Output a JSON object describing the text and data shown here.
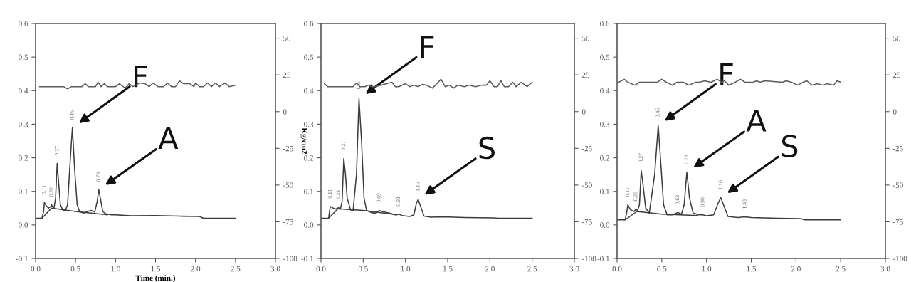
{
  "chart_data": [
    {
      "type": "line",
      "xlabel": "Time (min.)",
      "y2label": "Kg/cm2",
      "xlim": [
        0,
        3
      ],
      "xticks": [
        {
          "value": 0,
          "label": "0.0"
        },
        {
          "value": 0.5,
          "label": "0.5"
        },
        {
          "value": 1,
          "label": "1.0"
        },
        {
          "value": 1.5,
          "label": "1.5"
        },
        {
          "value": 2,
          "label": "2.0"
        },
        {
          "value": 2.5,
          "label": "2.5"
        },
        {
          "value": 3,
          "label": "3.0"
        }
      ],
      "ylim": [
        -0.1,
        0.6
      ],
      "yticks": [
        {
          "value": -0.1,
          "label": "-0.1"
        },
        {
          "value": 0,
          "label": "0.0"
        },
        {
          "value": 0.1,
          "label": "0.1"
        },
        {
          "value": 0.2,
          "label": "0.2"
        },
        {
          "value": 0.3,
          "label": "0.3"
        },
        {
          "value": 0.4,
          "label": "0.4"
        },
        {
          "value": 0.5,
          "label": "0.5"
        },
        {
          "value": 0.6,
          "label": "0.6"
        }
      ],
      "y2lim": [
        -100,
        60
      ],
      "y2ticks": [
        -100,
        -75,
        -50,
        -25,
        0,
        25,
        50
      ],
      "series": [
        {
          "color": "#3c3c3c",
          "x": [
            0,
            0.08,
            0.1,
            0.11,
            0.13,
            0.16,
            0.19,
            0.2,
            0.21,
            0.23,
            0.25,
            0.27,
            0.29,
            0.31,
            0.34,
            0.37,
            0.4,
            0.43,
            0.46,
            0.49,
            0.52,
            0.55,
            0.6,
            0.65,
            0.7,
            0.74,
            0.77,
            0.79,
            0.81,
            0.84,
            0.88,
            0.95,
            1.0,
            1.2,
            1.5,
            1.8,
            2.05,
            2.1,
            2.5
          ],
          "values": [
            0.02,
            0.02,
            0.04,
            0.067,
            0.058,
            0.05,
            0.055,
            0.06,
            0.055,
            0.05,
            0.08,
            0.183,
            0.12,
            0.06,
            0.045,
            0.042,
            0.06,
            0.18,
            0.289,
            0.16,
            0.06,
            0.04,
            0.035,
            0.04,
            0.043,
            0.038,
            0.07,
            0.105,
            0.08,
            0.04,
            0.033,
            0.03,
            0.03,
            0.027,
            0.028,
            0.026,
            0.025,
            0.02,
            0.02
          ]
        },
        {
          "color": "#3c3c3c",
          "x": [
            0.08,
            0.2,
            0.5,
            0.9
          ],
          "values": [
            0.02,
            0.05,
            0.04,
            0.03
          ]
        },
        {
          "color": "#5a5a5a",
          "axis": "y2",
          "x": [
            0.05,
            0.35,
            0.4,
            0.45,
            0.58,
            0.62,
            0.66,
            0.75,
            0.78,
            0.82,
            0.86,
            0.9,
            1.0,
            1.05,
            1.12,
            1.17,
            1.22,
            1.3,
            1.37,
            1.42,
            1.47,
            1.53,
            1.6,
            1.65,
            1.7,
            1.75,
            1.8,
            1.85,
            1.93,
            1.98,
            2.0,
            2.05,
            2.1,
            2.15,
            2.2,
            2.25,
            2.3,
            2.37,
            2.42,
            2.5
          ],
          "values": [
            17,
            17,
            15.5,
            17,
            17,
            19,
            17,
            17,
            20,
            17,
            19,
            17,
            17,
            19,
            16,
            19,
            17,
            19.5,
            19,
            17,
            19.5,
            17,
            17,
            19.5,
            17,
            17,
            21,
            19,
            19,
            17,
            19.5,
            17,
            17,
            19.5,
            17,
            19.5,
            17,
            19.5,
            17,
            18
          ]
        }
      ],
      "annotations": [
        {
          "text": "0.11",
          "x": 0.11,
          "y": 0.067
        },
        {
          "text": "0.20",
          "x": 0.2,
          "y": 0.06
        },
        {
          "text": "0.27",
          "x": 0.27,
          "y": 0.183
        },
        {
          "text": "0.46",
          "x": 0.46,
          "y": 0.289
        },
        {
          "text": "0.79",
          "x": 0.79,
          "y": 0.105
        },
        {
          "text": "F",
          "x": 0.46,
          "y": 0.289
        },
        {
          "text": "A",
          "x": 0.79,
          "y": 0.105
        }
      ]
    },
    {
      "type": "line",
      "xlim": [
        0,
        3
      ],
      "xticks": [
        {
          "value": 0,
          "label": "0.0"
        },
        {
          "value": 0.5,
          "label": "0.5"
        },
        {
          "value": 1,
          "label": "1.0"
        },
        {
          "value": 1.5,
          "label": "1.5"
        },
        {
          "value": 2,
          "label": "2.0"
        },
        {
          "value": 2.5,
          "label": "2.5"
        },
        {
          "value": 3,
          "label": "3.0"
        }
      ],
      "ylim": [
        -0.1,
        0.6
      ],
      "yticks": [
        {
          "value": -0.1,
          "label": "-0.1"
        },
        {
          "value": 0,
          "label": "0.0"
        },
        {
          "value": 0.1,
          "label": "0.1"
        },
        {
          "value": 0.2,
          "label": "0.2"
        },
        {
          "value": 0.3,
          "label": "0.3"
        },
        {
          "value": 0.4,
          "label": "0.4"
        },
        {
          "value": 0.5,
          "label": "0.5"
        },
        {
          "value": 0.6,
          "label": "0.6"
        }
      ],
      "y2lim": [
        -100,
        60
      ],
      "y2ticks": [
        -100,
        -75,
        -50,
        -25,
        0,
        25,
        50
      ],
      "series": [
        {
          "color": "#3c3c3c",
          "x": [
            0,
            0.09,
            0.11,
            0.13,
            0.17,
            0.2,
            0.21,
            0.23,
            0.25,
            0.27,
            0.29,
            0.31,
            0.35,
            0.38,
            0.42,
            0.45,
            0.48,
            0.51,
            0.54,
            0.6,
            0.65,
            0.69,
            0.72,
            0.8,
            0.88,
            0.92,
            0.96,
            1.05,
            1.1,
            1.13,
            1.15,
            1.18,
            1.22,
            1.3,
            1.45,
            1.7,
            2.05,
            2.1,
            2.5
          ],
          "values": [
            0.02,
            0.02,
            0.055,
            0.052,
            0.047,
            0.05,
            0.053,
            0.048,
            0.07,
            0.198,
            0.15,
            0.08,
            0.045,
            0.043,
            0.15,
            0.376,
            0.25,
            0.08,
            0.043,
            0.036,
            0.035,
            0.043,
            0.04,
            0.036,
            0.03,
            0.032,
            0.028,
            0.025,
            0.03,
            0.065,
            0.076,
            0.055,
            0.026,
            0.023,
            0.024,
            0.022,
            0.021,
            0.02,
            0.02
          ]
        },
        {
          "color": "#3c3c3c",
          "x": [
            0.09,
            0.2,
            0.5,
            0.9
          ],
          "values": [
            0.02,
            0.048,
            0.043,
            0.03
          ]
        },
        {
          "color": "#5a5a5a",
          "axis": "y2",
          "x": [
            0.04,
            0.08,
            0.38,
            0.42,
            0.46,
            0.52,
            0.56,
            0.6,
            0.64,
            0.84,
            0.88,
            0.92,
            1.0,
            1.05,
            1.1,
            1.15,
            1.2,
            1.25,
            1.32,
            1.42,
            1.47,
            1.52,
            1.57,
            1.62,
            1.7,
            1.75,
            1.83,
            1.9,
            1.96,
            2.0,
            2.05,
            2.09,
            2.13,
            2.17,
            2.22,
            2.27,
            2.31,
            2.37,
            2.44,
            2.5
          ],
          "values": [
            19,
            17,
            17,
            19.5,
            17,
            17,
            18,
            17,
            17,
            20,
            17,
            17,
            19,
            17,
            18,
            17,
            18.5,
            18,
            16,
            22,
            17,
            18,
            16,
            18,
            17,
            18,
            17,
            18,
            18,
            21,
            17,
            17,
            21,
            17,
            17,
            20,
            17,
            20,
            17,
            20
          ]
        }
      ],
      "annotations": [
        {
          "text": "0.11",
          "x": 0.11,
          "y": 0.055
        },
        {
          "text": "0.21",
          "x": 0.21,
          "y": 0.053
        },
        {
          "text": "0.27",
          "x": 0.27,
          "y": 0.198
        },
        {
          "text": "0.45",
          "x": 0.45,
          "y": 0.376
        },
        {
          "text": "0.69",
          "x": 0.69,
          "y": 0.043
        },
        {
          "text": "0.92",
          "x": 0.92,
          "y": 0.032
        },
        {
          "text": "1.15",
          "x": 1.15,
          "y": 0.076
        },
        {
          "text": "F",
          "x": 0.45,
          "y": 0.376
        },
        {
          "text": "S",
          "x": 1.15,
          "y": 0.076
        }
      ]
    },
    {
      "type": "line",
      "xlim": [
        0,
        3
      ],
      "xticks": [
        {
          "value": 0,
          "label": "0.0"
        },
        {
          "value": 0.5,
          "label": "0.5"
        },
        {
          "value": 1,
          "label": "1.0"
        },
        {
          "value": 1.5,
          "label": "1.5"
        },
        {
          "value": 2,
          "label": "2.0"
        },
        {
          "value": 2.5,
          "label": "2.5"
        },
        {
          "value": 3,
          "label": "3.0"
        }
      ],
      "ylim": [
        -0.1,
        0.6
      ],
      "yticks": [
        {
          "value": -0.1,
          "label": "-0.1"
        },
        {
          "value": 0,
          "label": "0.0"
        },
        {
          "value": 0.1,
          "label": "0.1"
        },
        {
          "value": 0.2,
          "label": "0.2"
        },
        {
          "value": 0.3,
          "label": "0.3"
        },
        {
          "value": 0.4,
          "label": "0.4"
        },
        {
          "value": 0.5,
          "label": "0.5"
        },
        {
          "value": 0.6,
          "label": "0.6"
        }
      ],
      "y2lim": [
        -100,
        60
      ],
      "y2ticks": [
        -100,
        -75,
        -50,
        -25,
        0,
        25,
        50
      ],
      "series": [
        {
          "color": "#3c3c3c",
          "x": [
            0,
            0.09,
            0.11,
            0.12,
            0.15,
            0.19,
            0.21,
            0.23,
            0.25,
            0.27,
            0.29,
            0.32,
            0.36,
            0.42,
            0.46,
            0.49,
            0.52,
            0.56,
            0.62,
            0.68,
            0.72,
            0.75,
            0.78,
            0.81,
            0.85,
            0.92,
            0.96,
            1.0,
            1.08,
            1.13,
            1.16,
            1.19,
            1.24,
            1.35,
            1.43,
            1.5,
            1.8,
            2.05,
            2.1,
            2.5
          ],
          "values": [
            0.015,
            0.015,
            0.04,
            0.06,
            0.045,
            0.04,
            0.047,
            0.043,
            0.06,
            0.162,
            0.12,
            0.05,
            0.035,
            0.15,
            0.296,
            0.18,
            0.06,
            0.03,
            0.03,
            0.037,
            0.032,
            0.06,
            0.157,
            0.08,
            0.035,
            0.03,
            0.03,
            0.027,
            0.03,
            0.065,
            0.081,
            0.06,
            0.025,
            0.022,
            0.024,
            0.022,
            0.02,
            0.019,
            0.015,
            0.015
          ]
        },
        {
          "color": "#3c3c3c",
          "x": [
            0.09,
            0.22,
            0.5,
            0.9
          ],
          "values": [
            0.015,
            0.04,
            0.032,
            0.028
          ]
        },
        {
          "color": "#5a5a5a",
          "axis": "y2",
          "x": [
            0.02,
            0.08,
            0.12,
            0.2,
            0.25,
            0.45,
            0.5,
            0.55,
            0.62,
            0.67,
            0.74,
            0.8,
            0.88,
            0.92,
            0.98,
            1.05,
            1.12,
            1.17,
            1.2,
            1.25,
            1.32,
            1.38,
            1.43,
            1.52,
            1.56,
            1.6,
            1.65,
            1.85,
            1.89,
            1.95,
            2.02,
            2.08,
            2.12,
            2.18,
            2.24,
            2.3,
            2.35,
            2.42,
            2.46,
            2.5
          ],
          "values": [
            20,
            22,
            20,
            18,
            20,
            20,
            22,
            20,
            18,
            20,
            20,
            18,
            20,
            20,
            21,
            20,
            22,
            20,
            21,
            18,
            20,
            22,
            20,
            20,
            21,
            20,
            21,
            20,
            21,
            20,
            18,
            20,
            21,
            18,
            19,
            18,
            19,
            18,
            21,
            20
          ]
        }
      ],
      "annotations": [
        {
          "text": "0.11",
          "x": 0.12,
          "y": 0.06
        },
        {
          "text": "0.21",
          "x": 0.21,
          "y": 0.047
        },
        {
          "text": "0.27",
          "x": 0.27,
          "y": 0.162
        },
        {
          "text": "0.46",
          "x": 0.46,
          "y": 0.296
        },
        {
          "text": "0.68",
          "x": 0.68,
          "y": 0.037
        },
        {
          "text": "0.78",
          "x": 0.78,
          "y": 0.157
        },
        {
          "text": "0.96",
          "x": 0.96,
          "y": 0.03
        },
        {
          "text": "1.16",
          "x": 1.16,
          "y": 0.081
        },
        {
          "text": "1.43",
          "x": 1.43,
          "y": 0.024
        },
        {
          "text": "F",
          "x": 0.46,
          "y": 0.296
        },
        {
          "text": "A",
          "x": 0.78,
          "y": 0.157
        },
        {
          "text": "S",
          "x": 1.16,
          "y": 0.081
        }
      ]
    }
  ]
}
